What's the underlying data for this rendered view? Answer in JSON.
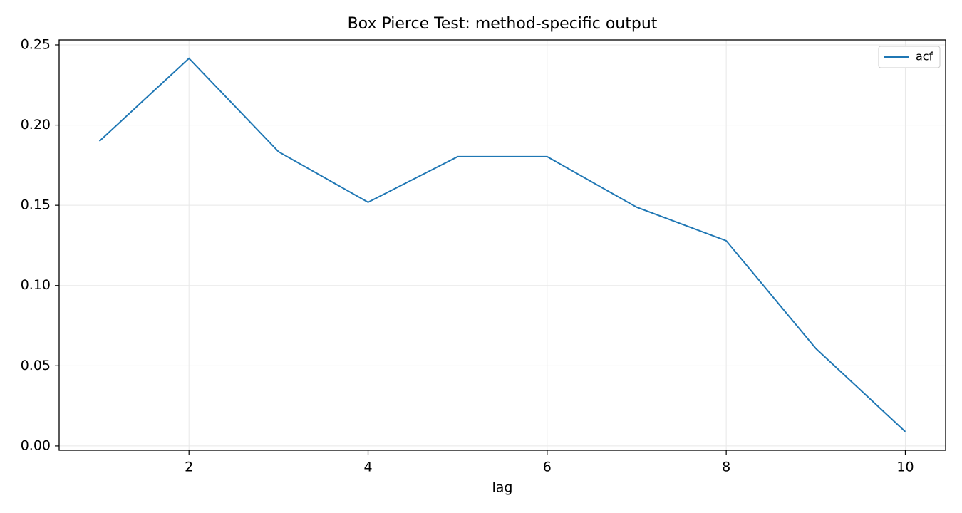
{
  "chart_data": {
    "type": "line",
    "title": "Box Pierce Test: method-specific output",
    "x_label": "lag",
    "x": [
      1,
      2,
      3,
      4,
      5,
      6,
      7,
      8,
      9,
      10
    ],
    "series": [
      {
        "name": "acf",
        "color": "#1f77b4",
        "values": [
          0.19,
          0.2416,
          0.1834,
          0.1519,
          0.1803,
          0.1803,
          0.1488,
          0.1279,
          0.0608,
          0.0089
        ]
      }
    ],
    "xlim": [
      0.55,
      10.45
    ],
    "xticks": [
      2,
      4,
      6,
      8,
      10
    ],
    "ylim": [
      -0.0027,
      0.2531
    ],
    "yticks": [
      {
        "value": 0,
        "label": "0.00"
      },
      0.05,
      {
        "value": 0.1,
        "label": "0.10"
      },
      0.15,
      {
        "value": 0.2,
        "label": "0.20"
      },
      0.25
    ],
    "grid": true,
    "legend": "upper right"
  }
}
